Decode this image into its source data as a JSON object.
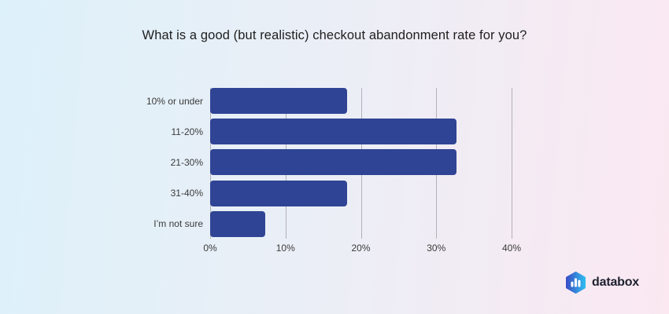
{
  "title": "What is a good (but realistic) checkout abandonment rate for you?",
  "chart_data": {
    "type": "bar",
    "orientation": "horizontal",
    "title": "What is a good (but realistic) checkout abandonment rate for you?",
    "categories": [
      "10% or under",
      "11-20%",
      "21-30%",
      "31-40%",
      "I’m not sure"
    ],
    "values": [
      18.2,
      32.7,
      32.7,
      18.2,
      7.3
    ],
    "value_unit": "%",
    "x_tick_labels": [
      "0%",
      "10%",
      "20%",
      "30%",
      "40%"
    ],
    "x_tick_values": [
      0,
      10,
      20,
      30,
      40
    ],
    "xlim": [
      0,
      44.9
    ],
    "grid": true,
    "legend": false,
    "data_labels": false,
    "bar_color": "#2f4494",
    "gridline_color": "#b3b1b8"
  },
  "branding": {
    "logo_text": "databox",
    "logo_icon": "bar-chart-hexagon-icon",
    "logo_text_color": "#1e2130",
    "logo_gradient_start": "#3952c6",
    "logo_gradient_end": "#30b8ee"
  },
  "colors": {
    "background_gradient_left": "#ddf1fa",
    "background_gradient_right": "#fbe8f1",
    "title_color": "#1f1f1f",
    "label_color": "#3b3b3b"
  }
}
